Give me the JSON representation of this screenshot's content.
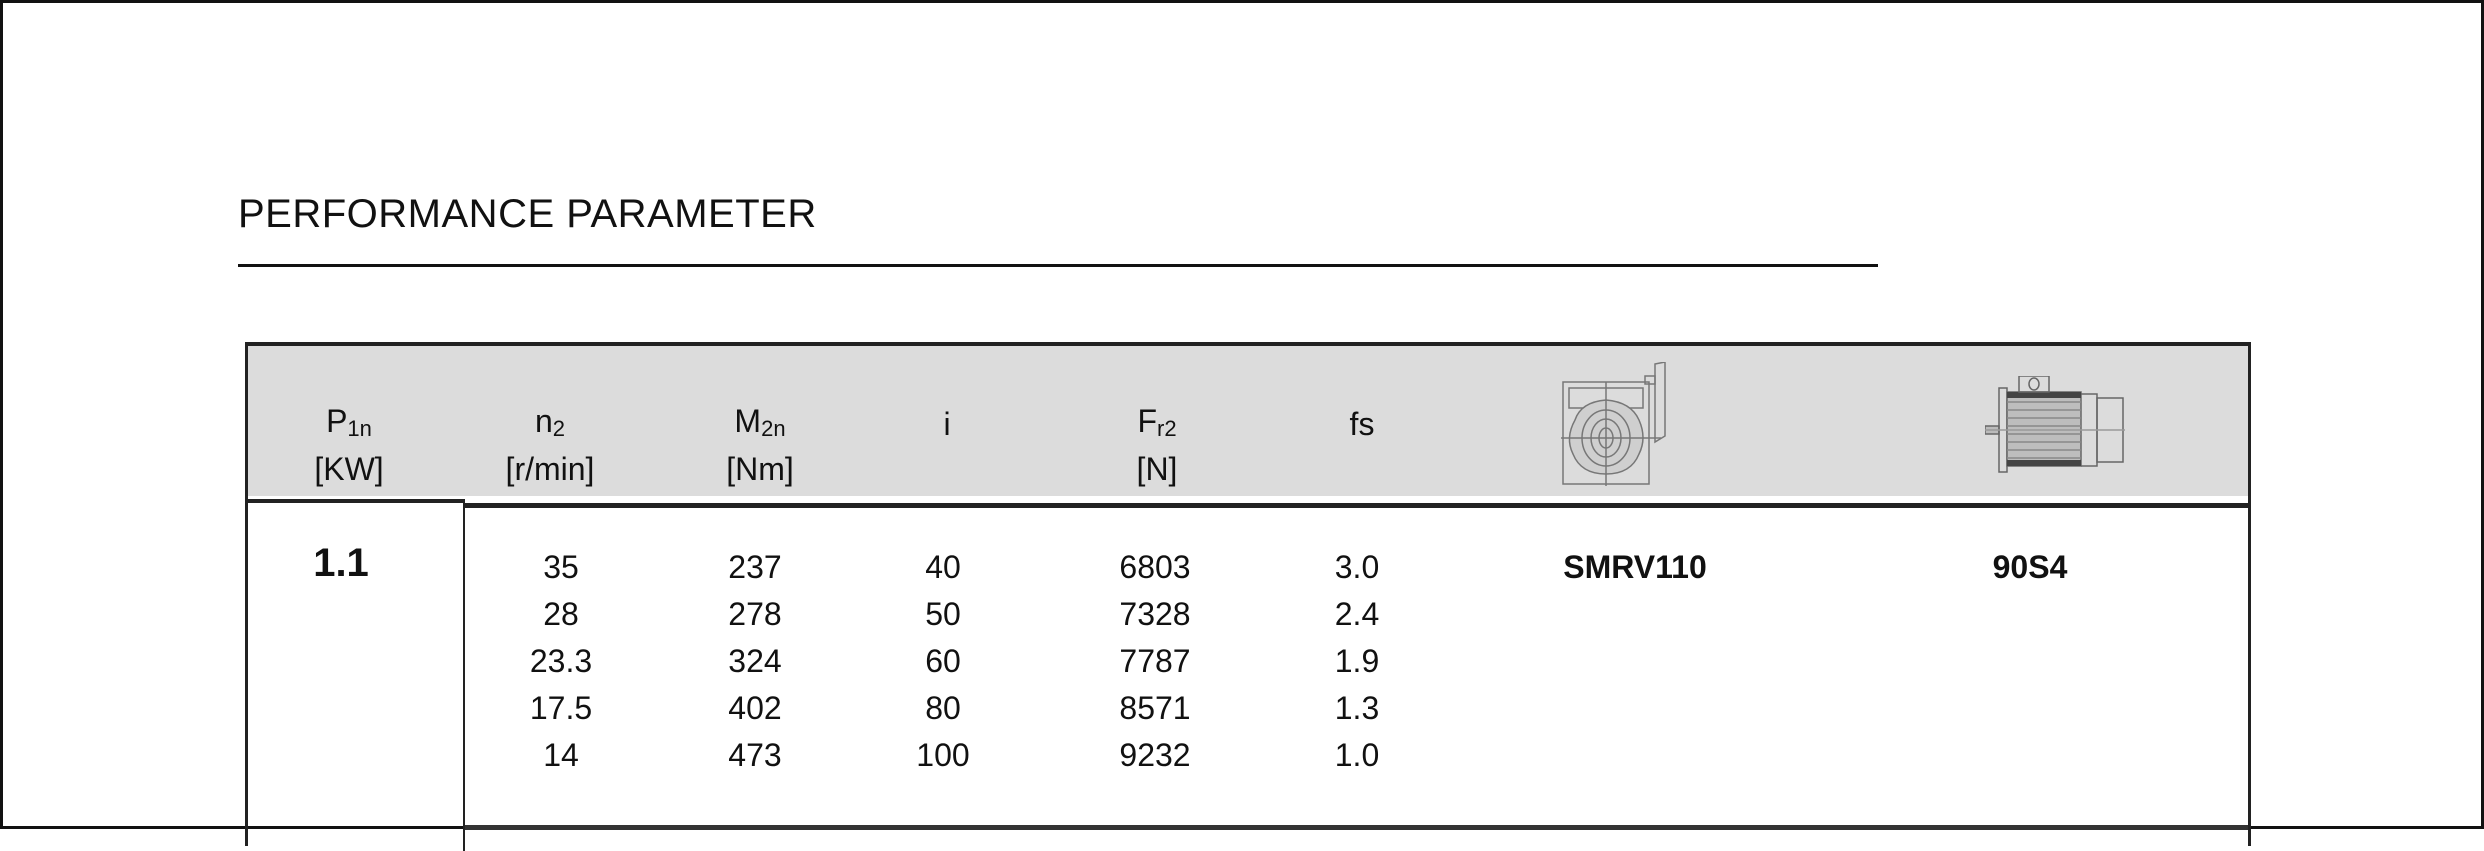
{
  "title": "PERFORMANCE PARAMETER",
  "header": {
    "p1n": {
      "symbol": "P",
      "sub": "1n",
      "unit": "[KW]"
    },
    "n2": {
      "symbol": "n",
      "sub": "2",
      "unit": "[r/min]"
    },
    "m2n": {
      "symbol": "M",
      "sub": "2n",
      "unit": "[Nm]"
    },
    "i": {
      "symbol": "i"
    },
    "fr2": {
      "symbol": "F",
      "sub": "r2",
      "unit": "[N]"
    },
    "fs": {
      "symbol": "fs"
    },
    "gearbox_icon": "worm-gearbox-drawing-icon",
    "motor_icon": "electric-motor-drawing-icon"
  },
  "group": {
    "p1n": "1.1",
    "n2": [
      "35",
      "28",
      "23.3",
      "17.5",
      "14"
    ],
    "m2n": [
      "237",
      "278",
      "324",
      "402",
      "473"
    ],
    "i": [
      "40",
      "50",
      "60",
      "80",
      "100"
    ],
    "fr2": [
      "6803",
      "7328",
      "7787",
      "8571",
      "9232"
    ],
    "fs": [
      "3.0",
      "2.4",
      "1.9",
      "1.3",
      "1.0"
    ],
    "gearbox": "SMRV110",
    "motor": "90S4"
  }
}
